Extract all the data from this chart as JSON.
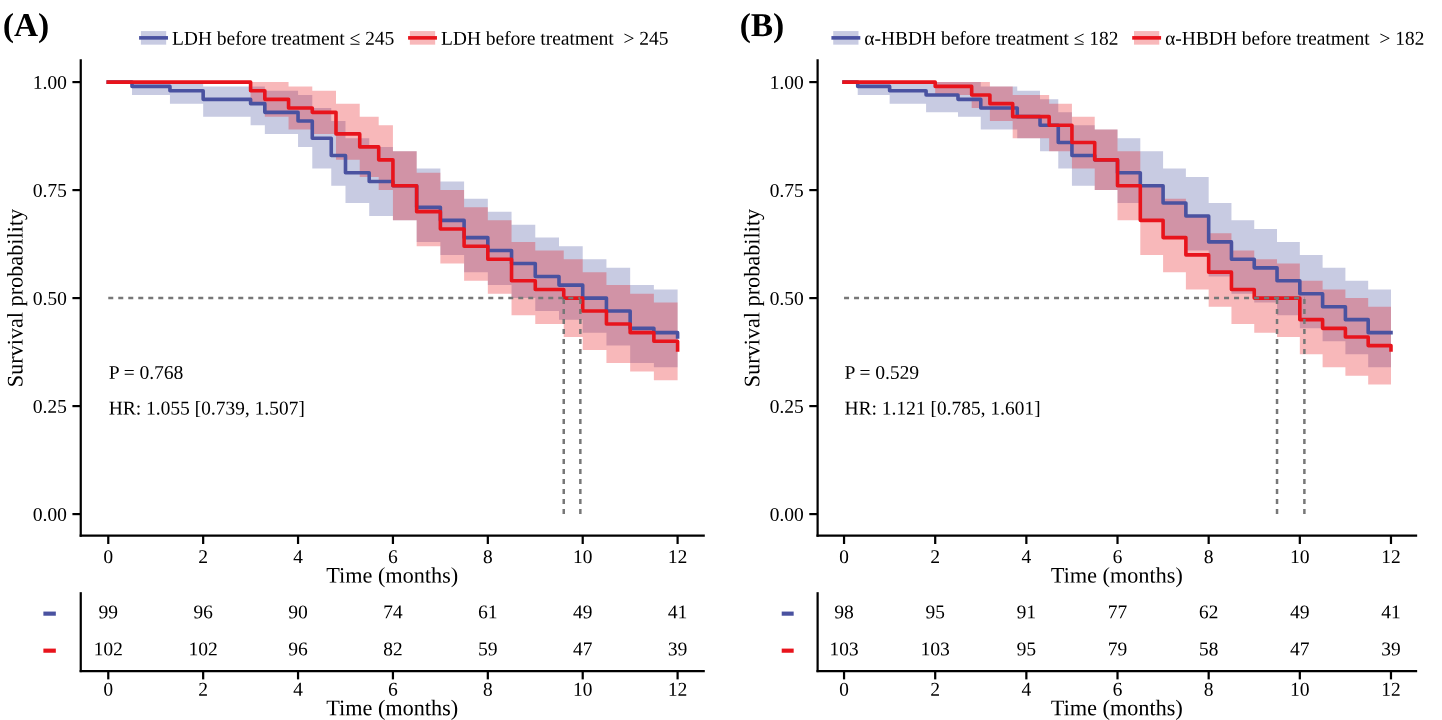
{
  "chart_data": [
    {
      "type": "step",
      "title": "(A)",
      "xlabel": "Time (months)",
      "ylabel": "Survival probability",
      "xlim": [
        -0.58,
        12.55
      ],
      "ylim": [
        -0.05,
        1.05
      ],
      "xticks": [
        0,
        2,
        4,
        6,
        8,
        10,
        12
      ],
      "yticks": [
        {
          "value": 0,
          "label": "0.00"
        },
        {
          "value": 0.25,
          "label": "0.25"
        },
        {
          "value": 0.5,
          "label": "0.50"
        },
        {
          "value": 0.75,
          "label": "0.75"
        },
        {
          "value": 1,
          "label": "1.00"
        }
      ],
      "grid": false,
      "legend": "top",
      "annotations": [
        "P = 0.768",
        "HR: 1.055 [0.739, 1.507]"
      ],
      "ref_lines": [
        {
          "axis": "y",
          "value": 0.5,
          "line_style": "dashed",
          "color": "#777777"
        },
        {
          "axis": "x",
          "value": 9.6,
          "line_style": "dashed",
          "color": "#777777"
        },
        {
          "axis": "x",
          "value": 9.95,
          "line_style": "dashed",
          "color": "#777777"
        }
      ],
      "series": [
        {
          "name": "LDH before treatment ≤ 245",
          "color": "#4a52a0",
          "x": [
            0,
            0.5,
            1.3,
            2,
            3,
            3.3,
            4,
            4.3,
            4.7,
            5,
            5.5,
            6,
            6.5,
            7,
            7.5,
            8,
            8.5,
            9,
            9.5,
            10,
            10.5,
            11,
            11.5,
            12
          ],
          "values": [
            1.0,
            0.99,
            0.98,
            0.96,
            0.95,
            0.93,
            0.91,
            0.87,
            0.83,
            0.79,
            0.77,
            0.76,
            0.71,
            0.68,
            0.64,
            0.61,
            0.58,
            0.55,
            0.53,
            0.5,
            0.47,
            0.43,
            0.42,
            0.41
          ],
          "lower": [
            1.0,
            0.97,
            0.95,
            0.92,
            0.9,
            0.88,
            0.85,
            0.8,
            0.76,
            0.72,
            0.69,
            0.68,
            0.63,
            0.6,
            0.56,
            0.53,
            0.5,
            0.47,
            0.45,
            0.42,
            0.39,
            0.35,
            0.34,
            0.32
          ],
          "upper": [
            1.0,
            1.0,
            1.0,
            0.99,
            0.99,
            0.98,
            0.97,
            0.94,
            0.91,
            0.87,
            0.85,
            0.84,
            0.8,
            0.77,
            0.73,
            0.7,
            0.67,
            0.64,
            0.62,
            0.59,
            0.57,
            0.53,
            0.52,
            0.52
          ]
        },
        {
          "name": "LDH before treatment  > 245",
          "color": "#e8141c",
          "x": [
            0,
            2.8,
            3,
            3.3,
            3.8,
            4.3,
            4.8,
            5.3,
            5.7,
            6,
            6.5,
            7,
            7.5,
            8,
            8.5,
            9,
            9.6,
            10,
            10.5,
            11,
            11.5,
            12
          ],
          "values": [
            1.0,
            1.0,
            0.98,
            0.96,
            0.94,
            0.93,
            0.88,
            0.85,
            0.82,
            0.76,
            0.7,
            0.66,
            0.62,
            0.59,
            0.54,
            0.52,
            0.5,
            0.47,
            0.44,
            0.42,
            0.4,
            0.38
          ],
          "lower": [
            1.0,
            1.0,
            0.95,
            0.92,
            0.89,
            0.88,
            0.82,
            0.78,
            0.75,
            0.68,
            0.62,
            0.58,
            0.54,
            0.51,
            0.46,
            0.44,
            0.41,
            0.38,
            0.35,
            0.33,
            0.31,
            0.3
          ],
          "upper": [
            1.0,
            1.0,
            1.0,
            1.0,
            0.99,
            0.98,
            0.95,
            0.92,
            0.9,
            0.84,
            0.79,
            0.75,
            0.71,
            0.68,
            0.63,
            0.61,
            0.59,
            0.56,
            0.53,
            0.51,
            0.49,
            0.48
          ]
        }
      ]
    },
    {
      "type": "step",
      "title": "(B)",
      "xlabel": "Time (months)",
      "ylabel": "Survival probability",
      "xlim": [
        -0.58,
        12.55
      ],
      "ylim": [
        -0.05,
        1.05
      ],
      "xticks": [
        0,
        2,
        4,
        6,
        8,
        10,
        12
      ],
      "yticks": [
        {
          "value": 0,
          "label": "0.00"
        },
        {
          "value": 0.25,
          "label": "0.25"
        },
        {
          "value": 0.5,
          "label": "0.50"
        },
        {
          "value": 0.75,
          "label": "0.75"
        },
        {
          "value": 1,
          "label": "1.00"
        }
      ],
      "grid": false,
      "legend": "top",
      "annotations": [
        "P = 0.529",
        "HR: 1.121 [0.785, 1.601]"
      ],
      "ref_lines": [
        {
          "axis": "y",
          "value": 0.5,
          "line_style": "dashed",
          "color": "#777777"
        },
        {
          "axis": "x",
          "value": 9.5,
          "line_style": "dashed",
          "color": "#777777"
        },
        {
          "axis": "x",
          "value": 10.1,
          "line_style": "dashed",
          "color": "#777777"
        }
      ],
      "series": [
        {
          "name": "α-HBDH before treatment ≤ 182",
          "color": "#4a52a0",
          "x": [
            0,
            0.3,
            1,
            1.8,
            2.5,
            3,
            3.8,
            4.3,
            4.7,
            5,
            5.5,
            6,
            6.5,
            7,
            7.5,
            8,
            8.5,
            9,
            9.5,
            10,
            10.5,
            11,
            11.5,
            12
          ],
          "values": [
            1.0,
            0.99,
            0.98,
            0.97,
            0.96,
            0.94,
            0.92,
            0.9,
            0.86,
            0.83,
            0.82,
            0.79,
            0.76,
            0.72,
            0.69,
            0.63,
            0.59,
            0.57,
            0.54,
            0.51,
            0.48,
            0.45,
            0.42,
            0.42
          ],
          "lower": [
            1.0,
            0.97,
            0.95,
            0.93,
            0.92,
            0.89,
            0.87,
            0.84,
            0.8,
            0.76,
            0.75,
            0.72,
            0.68,
            0.64,
            0.61,
            0.55,
            0.51,
            0.49,
            0.46,
            0.43,
            0.4,
            0.37,
            0.34,
            0.34
          ],
          "upper": [
            1.0,
            1.0,
            1.0,
            1.0,
            1.0,
            0.99,
            0.98,
            0.96,
            0.93,
            0.9,
            0.89,
            0.87,
            0.84,
            0.8,
            0.78,
            0.72,
            0.68,
            0.66,
            0.63,
            0.6,
            0.57,
            0.54,
            0.52,
            0.52
          ]
        },
        {
          "name": "α-HBDH before treatment  > 182",
          "color": "#e8141c",
          "x": [
            0,
            2,
            2.8,
            3.2,
            3.7,
            4.5,
            5,
            5.5,
            6,
            6.5,
            7,
            7.5,
            8,
            8.5,
            9,
            9.5,
            10,
            10.5,
            11,
            11.5,
            12
          ],
          "values": [
            1.0,
            0.99,
            0.97,
            0.95,
            0.92,
            0.9,
            0.86,
            0.82,
            0.76,
            0.68,
            0.64,
            0.6,
            0.56,
            0.52,
            0.5,
            0.5,
            0.45,
            0.43,
            0.41,
            0.39,
            0.38
          ],
          "lower": [
            1.0,
            0.97,
            0.94,
            0.91,
            0.87,
            0.84,
            0.8,
            0.75,
            0.68,
            0.6,
            0.56,
            0.52,
            0.48,
            0.44,
            0.42,
            0.41,
            0.37,
            0.34,
            0.32,
            0.3,
            0.3
          ],
          "upper": [
            1.0,
            1.0,
            1.0,
            0.99,
            0.97,
            0.95,
            0.92,
            0.89,
            0.84,
            0.76,
            0.73,
            0.69,
            0.65,
            0.61,
            0.59,
            0.58,
            0.54,
            0.52,
            0.5,
            0.48,
            0.48
          ]
        }
      ]
    },
    {
      "type": "heatmap",
      "xlabel": "Time (months)",
      "categories": [
        "0",
        "2",
        "4",
        "6",
        "8",
        "10",
        "12"
      ],
      "y_categories": [
        null,
        null
      ],
      "cells": [
        [
          99,
          96,
          90,
          74,
          61,
          49,
          41
        ],
        [
          102,
          102,
          96,
          82,
          59,
          47,
          39
        ]
      ],
      "data_labels": true
    },
    {
      "type": "heatmap",
      "xlabel": "Time (months)",
      "categories": [
        "0",
        "2",
        "4",
        "6",
        "8",
        "10",
        "12"
      ],
      "y_categories": [
        null,
        null
      ],
      "cells": [
        [
          98,
          95,
          91,
          77,
          62,
          49,
          41
        ],
        [
          103,
          103,
          95,
          79,
          58,
          47,
          39
        ]
      ],
      "data_labels": true
    }
  ]
}
